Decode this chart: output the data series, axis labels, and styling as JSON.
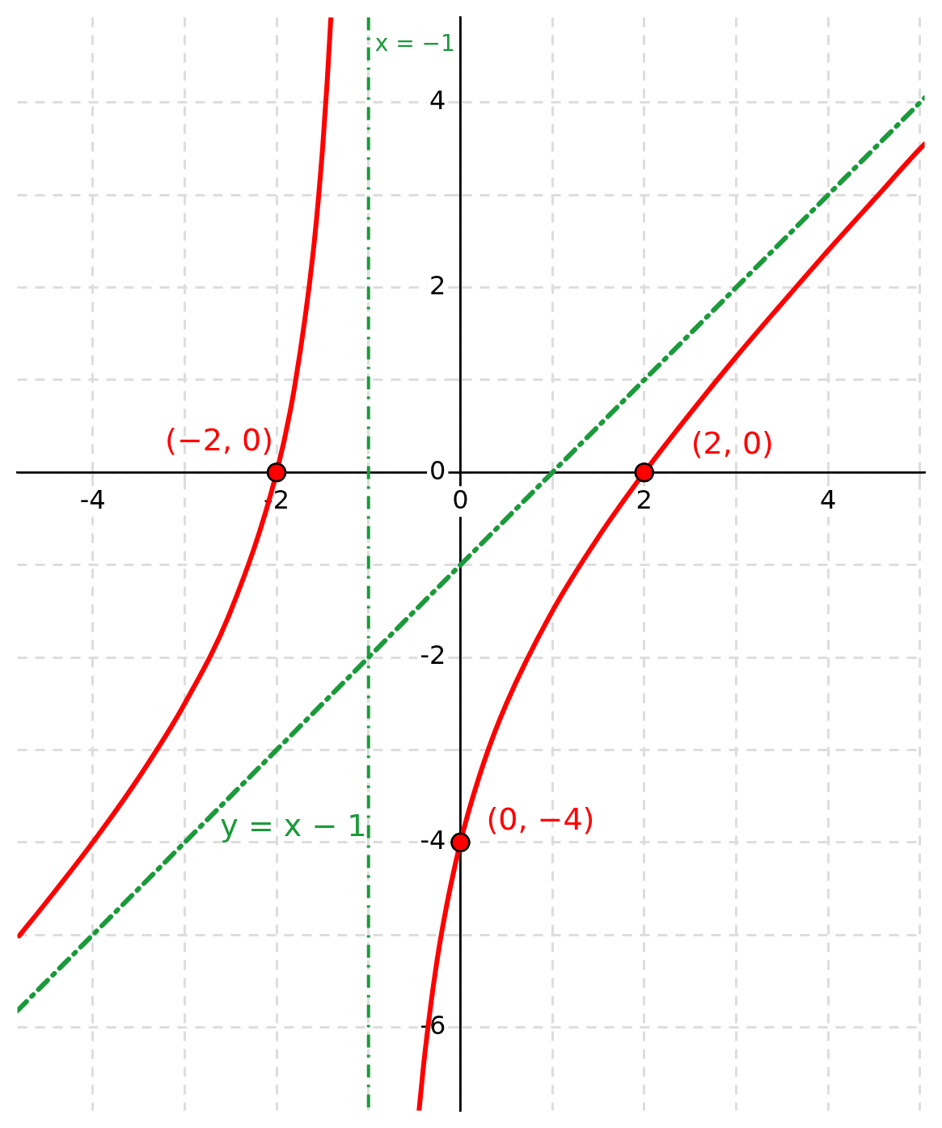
{
  "chart_data": {
    "type": "line",
    "xlim": [
      -4.82,
      5.05
    ],
    "ylim": [
      -6.9,
      4.92
    ],
    "xticks": [
      -4,
      {
        "value": -3,
        "label": null
      },
      -2,
      {
        "value": -1,
        "label": null
      },
      0,
      {
        "value": 1,
        "label": null
      },
      2,
      {
        "value": 3,
        "label": null
      },
      4,
      {
        "value": 5,
        "label": null
      }
    ],
    "yticks": [
      -6,
      {
        "value": -5,
        "label": null
      },
      -4,
      {
        "value": -3,
        "label": null
      },
      -2,
      {
        "value": -1,
        "label": null
      },
      0,
      {
        "value": 1,
        "label": null
      },
      2,
      {
        "value": 3,
        "label": null
      },
      4
    ],
    "grid": true,
    "legend": false,
    "series": [
      {
        "type": "line",
        "color": "#ff0000",
        "line_style": "solid",
        "x": [
          -4.8,
          -4.5,
          -4,
          -3.5,
          -3,
          -2.5,
          -2,
          -1.8,
          -1.6,
          -1.5,
          -1.45,
          -1.41,
          -1,
          -0.45,
          -0.4,
          -0.3,
          -0.2,
          0,
          0.25,
          0.5,
          1,
          1.5,
          2,
          2.5,
          3,
          3.5,
          4,
          4.5,
          5,
          5.05
        ],
        "values": [
          -5.01,
          -4.64,
          -4,
          -3.3,
          -2.5,
          -1.5,
          0,
          0.95,
          2.4,
          3.5,
          4.22,
          4.91,
          null,
          -6.9,
          -6.4,
          -5.59,
          -4.95,
          -4,
          -3.15,
          -2.5,
          -1.5,
          -0.7,
          0,
          0.64,
          1.25,
          1.83,
          2.4,
          2.95,
          3.5,
          3.55
        ]
      },
      {
        "type": "line",
        "name": "y = x − 1",
        "color": "#1a9a3a",
        "line_style": "dashed",
        "x": [
          -4.82,
          5.05
        ],
        "values": [
          -5.82,
          4.05
        ]
      },
      {
        "type": "scatter",
        "color": "#ff0000",
        "marker": "circle",
        "x": [
          -2,
          2,
          0
        ],
        "values": [
          0,
          0,
          -4
        ]
      }
    ],
    "ref_lines": [
      {
        "axis": "x",
        "value": -1,
        "label": "x = −1",
        "color": "#1a9a3a",
        "line_style": "dashed"
      }
    ],
    "annotations": [
      {
        "text": "(−2, 0)",
        "x": -2,
        "y": 0
      },
      {
        "text": "(2, 0)",
        "x": 2,
        "y": 0
      },
      {
        "text": "(0, −4)",
        "x": 0,
        "y": -4
      }
    ]
  }
}
